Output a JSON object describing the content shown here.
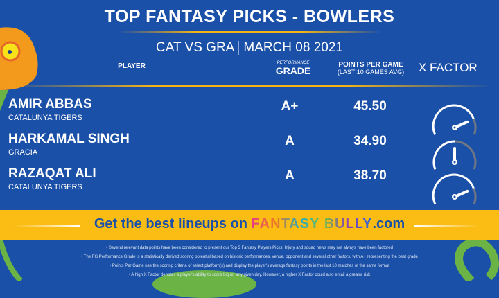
{
  "title": "TOP FANTASY PICKS - BOWLERS",
  "match": {
    "teams": "CAT VS GRA",
    "date": "MARCH 08 2021"
  },
  "headers": {
    "player": "PLAYER",
    "grade_small": "PERFORMANCE",
    "grade": "GRADE",
    "ppg": "POINTS PER GAME",
    "ppg_sub": "(LAST 10 GAMES AVG)",
    "xfactor": "X FACTOR"
  },
  "players": [
    {
      "name": "AMIR ABBAS",
      "team": "CATALUNYA TIGERS",
      "grade": "A+",
      "ppg": "45.50",
      "xfactor": 0.8
    },
    {
      "name": "HARKAMAL SINGH",
      "team": "GRACIA",
      "grade": "A",
      "ppg": "34.90",
      "xfactor": 0.5
    },
    {
      "name": "RAZAQAT ALI",
      "team": "CATALUNYA TIGERS",
      "grade": "A",
      "ppg": "38.70",
      "xfactor": 0.8
    }
  ],
  "banner": {
    "text": "Get the best lineups on",
    "brand": "FANTASY BULLY",
    "suffix": ".com"
  },
  "notes": [
    "Several relevant data points have been considered to present our Top 3 Fantasy Players Picks. Injury and squad news may not always have been factored",
    "The FG Performance Grade is a statistically derived scoring potential based on historic performances, venue, opponent and several other factors, with A+ representing the best grade",
    "Points Per Game use the scoring criteria of select platform(s) and display the player's average fantasy points in the last 10 matches of the same format",
    "A high X Factor denotes a player's ability to score big on any given day. However, a higher X Factor could also entail a greater risk"
  ],
  "colors": {
    "background": "#1b50a8",
    "accent": "#f5b414",
    "band": "#fbbd14"
  }
}
